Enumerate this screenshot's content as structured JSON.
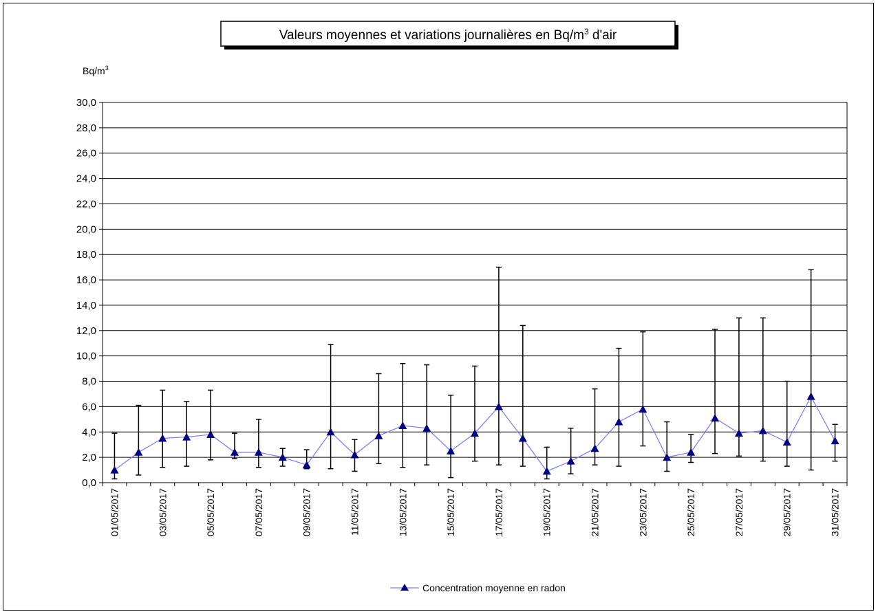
{
  "chart_data": {
    "type": "line",
    "title_main": "Valeurs moyennes et variations journalières en Bq/m",
    "title_sup": "3",
    "title_end": " d'air",
    "ylabel_main": "Bq/m",
    "ylabel_sup": "3",
    "ylim": [
      0,
      30
    ],
    "ytick_step": 2,
    "ytick_labels": [
      "0,0",
      "2,0",
      "4,0",
      "6,0",
      "8,0",
      "10,0",
      "12,0",
      "14,0",
      "16,0",
      "18,0",
      "20,0",
      "22,0",
      "24,0",
      "26,0",
      "28,0",
      "30,0"
    ],
    "grid": true,
    "legend_position": "bottom-center",
    "x": [
      "01/05/2017",
      "02/05/2017",
      "03/05/2017",
      "04/05/2017",
      "05/05/2017",
      "06/05/2017",
      "07/05/2017",
      "08/05/2017",
      "09/05/2017",
      "10/05/2017",
      "11/05/2017",
      "12/05/2017",
      "13/05/2017",
      "14/05/2017",
      "15/05/2017",
      "16/05/2017",
      "17/05/2017",
      "18/05/2017",
      "19/05/2017",
      "20/05/2017",
      "21/05/2017",
      "22/05/2017",
      "23/05/2017",
      "24/05/2017",
      "25/05/2017",
      "26/05/2017",
      "27/05/2017",
      "28/05/2017",
      "29/05/2017",
      "30/05/2017",
      "31/05/2017"
    ],
    "xtick_labels": [
      "01/05/2017",
      "03/05/2017",
      "05/05/2017",
      "07/05/2017",
      "09/05/2017",
      "11/05/2017",
      "13/05/2017",
      "15/05/2017",
      "17/05/2017",
      "19/05/2017",
      "21/05/2017",
      "23/05/2017",
      "25/05/2017",
      "27/05/2017",
      "29/05/2017",
      "31/05/2017"
    ],
    "series": [
      {
        "name": "Concentration moyenne en radon",
        "color": "#000080",
        "line_color": "#8080ff",
        "values": [
          1.0,
          2.4,
          3.5,
          3.6,
          3.8,
          2.4,
          2.4,
          2.0,
          1.4,
          4.0,
          2.2,
          3.7,
          4.5,
          4.3,
          2.5,
          3.9,
          6.0,
          3.5,
          0.9,
          1.7,
          2.7,
          4.8,
          5.8,
          2.0,
          2.4,
          5.1,
          3.9,
          4.1,
          3.2,
          6.8,
          3.3
        ],
        "min": [
          0.3,
          0.6,
          1.2,
          1.3,
          1.8,
          1.9,
          1.2,
          1.3,
          1.1,
          1.1,
          0.9,
          1.5,
          1.2,
          1.4,
          0.4,
          1.7,
          1.4,
          1.3,
          0.3,
          0.7,
          1.4,
          1.3,
          2.9,
          0.9,
          1.6,
          2.3,
          2.1,
          1.7,
          1.3,
          1.0,
          1.7
        ],
        "max": [
          3.9,
          6.1,
          7.3,
          6.4,
          7.3,
          3.9,
          5.0,
          2.7,
          2.6,
          10.9,
          3.4,
          8.6,
          9.4,
          9.3,
          6.9,
          9.2,
          17.0,
          12.4,
          2.8,
          4.3,
          7.4,
          10.6,
          11.9,
          4.8,
          3.8,
          12.1,
          13.0,
          13.0,
          8.0,
          16.8,
          4.6
        ]
      }
    ]
  }
}
